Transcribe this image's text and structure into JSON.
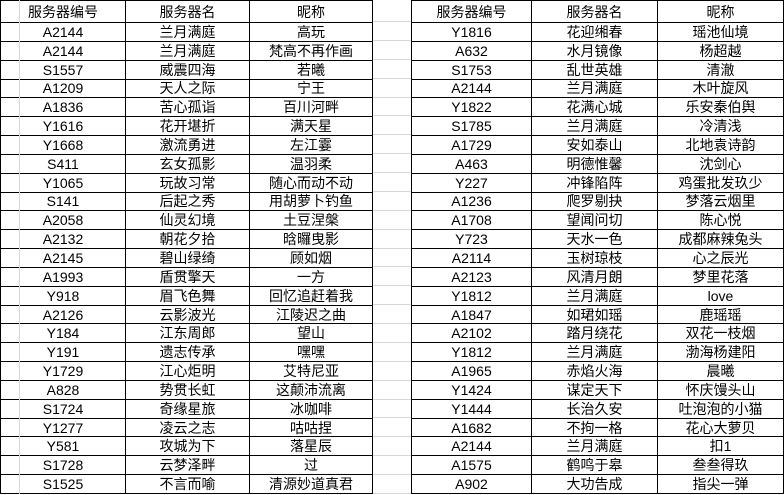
{
  "colors": {
    "background": "#ffffff",
    "table_border": "#000000",
    "gridline": "#d7d7d7",
    "text": "#000000"
  },
  "tables": [
    {
      "headers": [
        "服务器编号",
        "服务器名",
        "昵称"
      ],
      "rows": [
        [
          "A2144",
          "兰月满庭",
          "高玩"
        ],
        [
          "A2144",
          "兰月满庭",
          "梵高不再作画"
        ],
        [
          "S1557",
          "威震四海",
          "若曦"
        ],
        [
          "A1209",
          "天人之际",
          "宁王"
        ],
        [
          "A1836",
          "苦心孤诣",
          "百川河畔"
        ],
        [
          "Y1616",
          "花开堪折",
          "满天星"
        ],
        [
          "Y1668",
          "激流勇进",
          "左江霎"
        ],
        [
          "S411",
          "玄女孤影",
          "温羽柔"
        ],
        [
          "Y1065",
          "玩故习常",
          "随心而动不动"
        ],
        [
          "S141",
          "后起之秀",
          "用胡萝卜钓鱼"
        ],
        [
          "A2058",
          "仙灵幻境",
          "土豆涅槃"
        ],
        [
          "A2132",
          "朝花夕拾",
          "晗曪曳影"
        ],
        [
          "A2145",
          "碧山绿绮",
          "顾如烟"
        ],
        [
          "A1993",
          "盾贯擎天",
          "一方"
        ],
        [
          "Y918",
          "眉飞色舞",
          "回忆追赶着我"
        ],
        [
          "A2126",
          "云影波光",
          "江陵迟之曲"
        ],
        [
          "Y184",
          "江东周郎",
          "望山"
        ],
        [
          "Y191",
          "遗志传承",
          "嘿嘿"
        ],
        [
          "Y1729",
          "江心炬明",
          "艾特尼亚"
        ],
        [
          "A828",
          "势贯长虹",
          "这颠沛流离"
        ],
        [
          "S1724",
          "奇缘星旅",
          "冰咖啡"
        ],
        [
          "Y1277",
          "凌云之志",
          "咕咕捏"
        ],
        [
          "Y581",
          "攻城为下",
          "落星辰"
        ],
        [
          "S1728",
          "云梦泽畔",
          "过"
        ],
        [
          "S1525",
          "不言而喻",
          "清源妙道真君"
        ]
      ]
    },
    {
      "headers": [
        "服务器编号",
        "服务器名",
        "昵称"
      ],
      "rows": [
        [
          "Y1816",
          "花迎缃春",
          "瑶池仙境"
        ],
        [
          "A632",
          "水月镜像",
          "杨超越"
        ],
        [
          "S1753",
          "乱世英雄",
          "清澈"
        ],
        [
          "A2144",
          "兰月满庭",
          "木叶旋风"
        ],
        [
          "Y1822",
          "花满心城",
          "乐安秦伯舆"
        ],
        [
          "S1785",
          "兰月满庭",
          "冷清浅"
        ],
        [
          "A1729",
          "安如泰山",
          "北地袁诗韵"
        ],
        [
          "A463",
          "明德惟馨",
          "沈剑心"
        ],
        [
          "Y227",
          "冲锋陷阵",
          "鸡蛋批发玖少"
        ],
        [
          "A1236",
          "爬罗剔抉",
          "梦落云烟里"
        ],
        [
          "A1708",
          "望闻问切",
          "陈心悦"
        ],
        [
          "Y723",
          "天水一色",
          "成都麻辣兔头"
        ],
        [
          "A2114",
          "玉树琼枝",
          "心之辰光"
        ],
        [
          "A2123",
          "风清月朗",
          "梦里花落"
        ],
        [
          "Y1812",
          "兰月满庭",
          "love"
        ],
        [
          "A1847",
          "如珺如瑶",
          "鹿瑶瑶"
        ],
        [
          "A2102",
          "踏月绕花",
          "双花一枝烟"
        ],
        [
          "Y1812",
          "兰月满庭",
          "渤海杨建阳"
        ],
        [
          "A1965",
          "赤焰火海",
          "晨曦"
        ],
        [
          "Y1424",
          "谋定天下",
          "怀庆馒头山"
        ],
        [
          "Y1444",
          "长治久安",
          "吐泡泡的小猫"
        ],
        [
          "A1682",
          "不拘一格",
          "花心大萝贝"
        ],
        [
          "A2144",
          "兰月满庭",
          "扣1"
        ],
        [
          "A1575",
          "鹤鸣于皋",
          "叁叁得玖"
        ],
        [
          "A902",
          "大功告成",
          "指尖一弹"
        ]
      ]
    }
  ]
}
